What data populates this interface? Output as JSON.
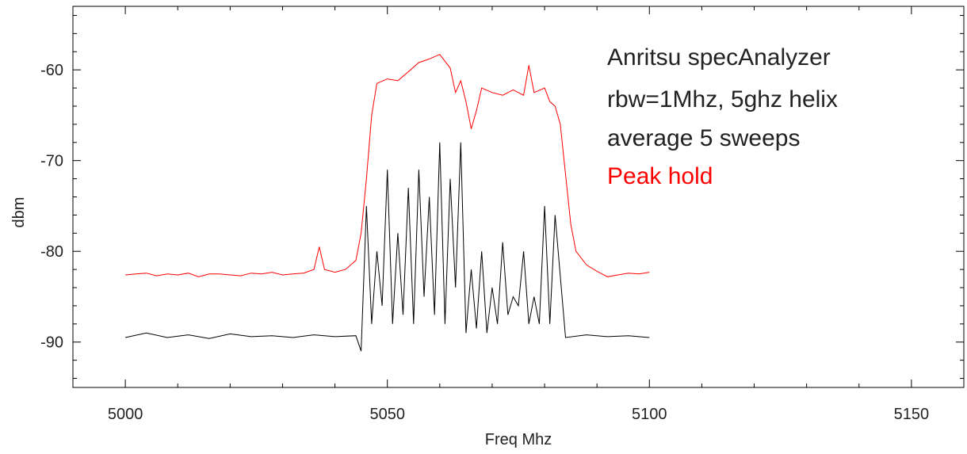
{
  "chart_data": {
    "type": "line",
    "xlabel": "Freq Mhz",
    "ylabel": "dbm",
    "xlim": [
      4990,
      5160
    ],
    "ylim": [
      -95,
      -53
    ],
    "x_ticks": [
      5000,
      5050,
      5100,
      5150
    ],
    "y_ticks": [
      -90,
      -80,
      -70,
      -60
    ],
    "grid": false,
    "annotations": [
      {
        "text": "Anritsu specAnalyzer",
        "color": "#222222"
      },
      {
        "text": "rbw=1Mhz, 5ghz helix",
        "color": "#222222"
      },
      {
        "text": "average 5 sweeps",
        "color": "#222222"
      },
      {
        "text": "Peak hold",
        "color": "#ff0000"
      }
    ],
    "series": [
      {
        "color": "#ff0000",
        "x": [
          5000,
          5002,
          5004,
          5006,
          5008,
          5010,
          5012,
          5014,
          5016,
          5018,
          5020,
          5022,
          5024,
          5026,
          5028,
          5030,
          5032,
          5034,
          5036,
          5037,
          5038,
          5040,
          5042,
          5044,
          5045,
          5046,
          5047,
          5048,
          5050,
          5052,
          5054,
          5056,
          5058,
          5060,
          5062,
          5063,
          5064,
          5065,
          5066,
          5067,
          5068,
          5070,
          5072,
          5074,
          5076,
          5077,
          5078,
          5080,
          5081,
          5082,
          5083,
          5084,
          5085,
          5086,
          5088,
          5090,
          5092,
          5094,
          5096,
          5098,
          5100
        ],
        "y": [
          -82.6,
          -82.5,
          -82.4,
          -82.7,
          -82.5,
          -82.6,
          -82.4,
          -82.8,
          -82.5,
          -82.5,
          -82.6,
          -82.7,
          -82.4,
          -82.5,
          -82.3,
          -82.6,
          -82.5,
          -82.4,
          -82.0,
          -79.5,
          -82.0,
          -82.3,
          -82.0,
          -81.0,
          -78.0,
          -72.0,
          -65.0,
          -61.5,
          -61.0,
          -61.2,
          -60.2,
          -59.2,
          -58.8,
          -58.3,
          -59.8,
          -62.5,
          -61.2,
          -63.5,
          -66.5,
          -64.5,
          -62.0,
          -62.5,
          -62.8,
          -62.2,
          -62.8,
          -59.5,
          -62.5,
          -62.0,
          -63.5,
          -64.0,
          -66.0,
          -71.5,
          -77.0,
          -80.0,
          -81.5,
          -82.2,
          -82.8,
          -82.6,
          -82.4,
          -82.5,
          -82.3
        ]
      },
      {
        "color": "#000000",
        "x": [
          5000,
          5004,
          5008,
          5012,
          5016,
          5020,
          5024,
          5028,
          5032,
          5036,
          5040,
          5044,
          5045,
          5046,
          5047,
          5048,
          5049,
          5050,
          5051,
          5052,
          5053,
          5054,
          5055,
          5056,
          5057,
          5058,
          5059,
          5060,
          5061,
          5062,
          5063,
          5064,
          5065,
          5066,
          5067,
          5068,
          5069,
          5070,
          5071,
          5072,
          5073,
          5074,
          5075,
          5076,
          5077,
          5078,
          5079,
          5080,
          5081,
          5082,
          5084,
          5088,
          5092,
          5096,
          5100
        ],
        "y": [
          -89.5,
          -89.0,
          -89.5,
          -89.2,
          -89.6,
          -89.1,
          -89.4,
          -89.3,
          -89.5,
          -89.2,
          -89.4,
          -89.3,
          -91.0,
          -75.0,
          -88.0,
          -80.0,
          -86.0,
          -71.0,
          -88.0,
          -78.0,
          -87.0,
          -73.0,
          -88.0,
          -71.0,
          -85.0,
          -74.0,
          -87.0,
          -68.0,
          -88.0,
          -72.0,
          -84.0,
          -68.0,
          -89.0,
          -82.0,
          -88.5,
          -80.0,
          -89.0,
          -84.0,
          -88.0,
          -79.0,
          -87.0,
          -85.0,
          -86.0,
          -80.0,
          -88.0,
          -85.0,
          -88.0,
          -75.0,
          -88.0,
          -76.0,
          -89.5,
          -89.2,
          -89.4,
          -89.3,
          -89.5
        ]
      }
    ]
  }
}
